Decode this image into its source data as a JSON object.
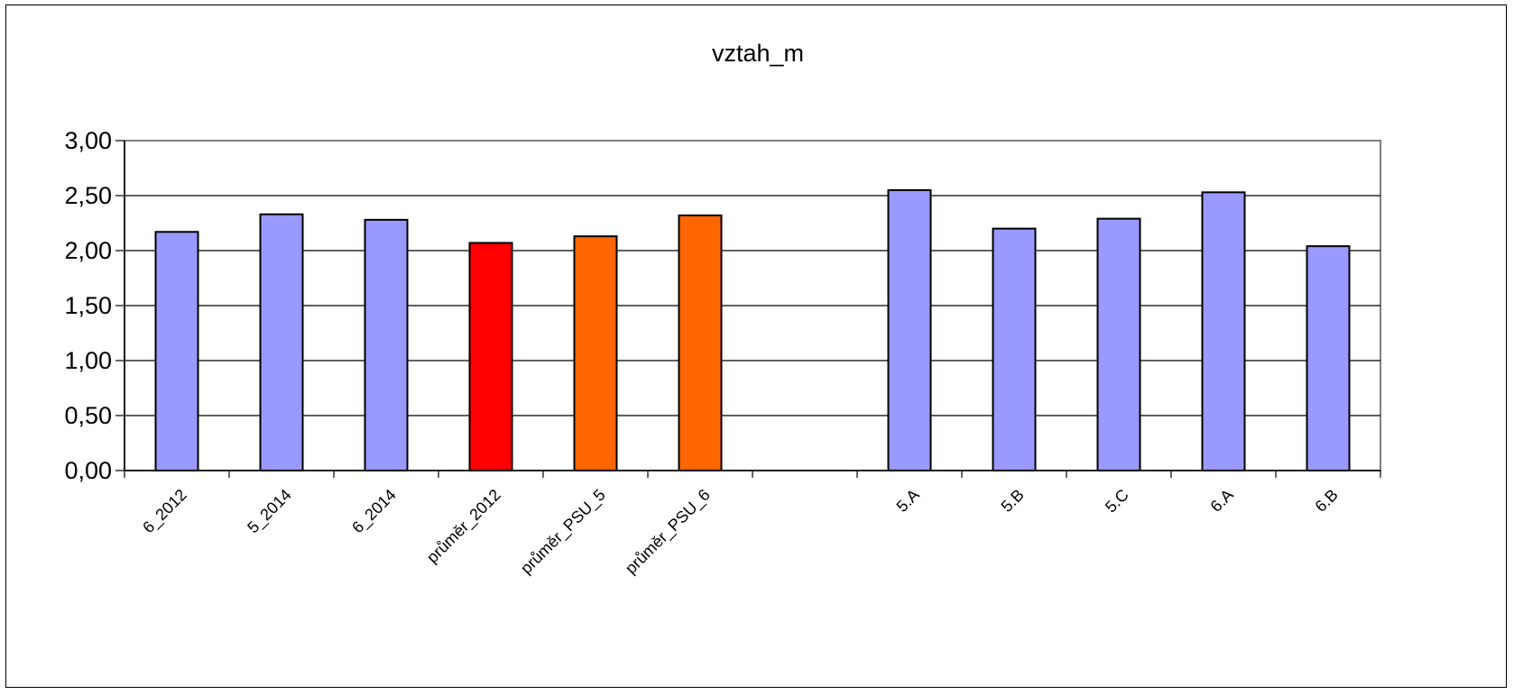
{
  "chart_data": {
    "type": "bar",
    "title": "vztah_m",
    "xlabel": "",
    "ylabel": "",
    "ylim": [
      0,
      3
    ],
    "y_ticks": [
      "0,00",
      "0,50",
      "1,00",
      "1,50",
      "2,00",
      "2,50",
      "3,00"
    ],
    "grid": true,
    "categories": [
      "6_2012",
      "5_2014",
      "6_2014",
      "průměr_2012",
      "průměr_PSU_5",
      "průměr_PSU_6",
      "",
      "5.A",
      "5.B",
      "5.C",
      "6.A",
      "6.B"
    ],
    "values": [
      2.17,
      2.33,
      2.28,
      2.07,
      2.13,
      2.32,
      null,
      2.55,
      2.2,
      2.29,
      2.53,
      2.04
    ],
    "colors": [
      "#9999ff",
      "#9999ff",
      "#9999ff",
      "#ff0000",
      "#ff6600",
      "#ff6600",
      null,
      "#9999ff",
      "#9999ff",
      "#9999ff",
      "#9999ff",
      "#9999ff"
    ]
  }
}
